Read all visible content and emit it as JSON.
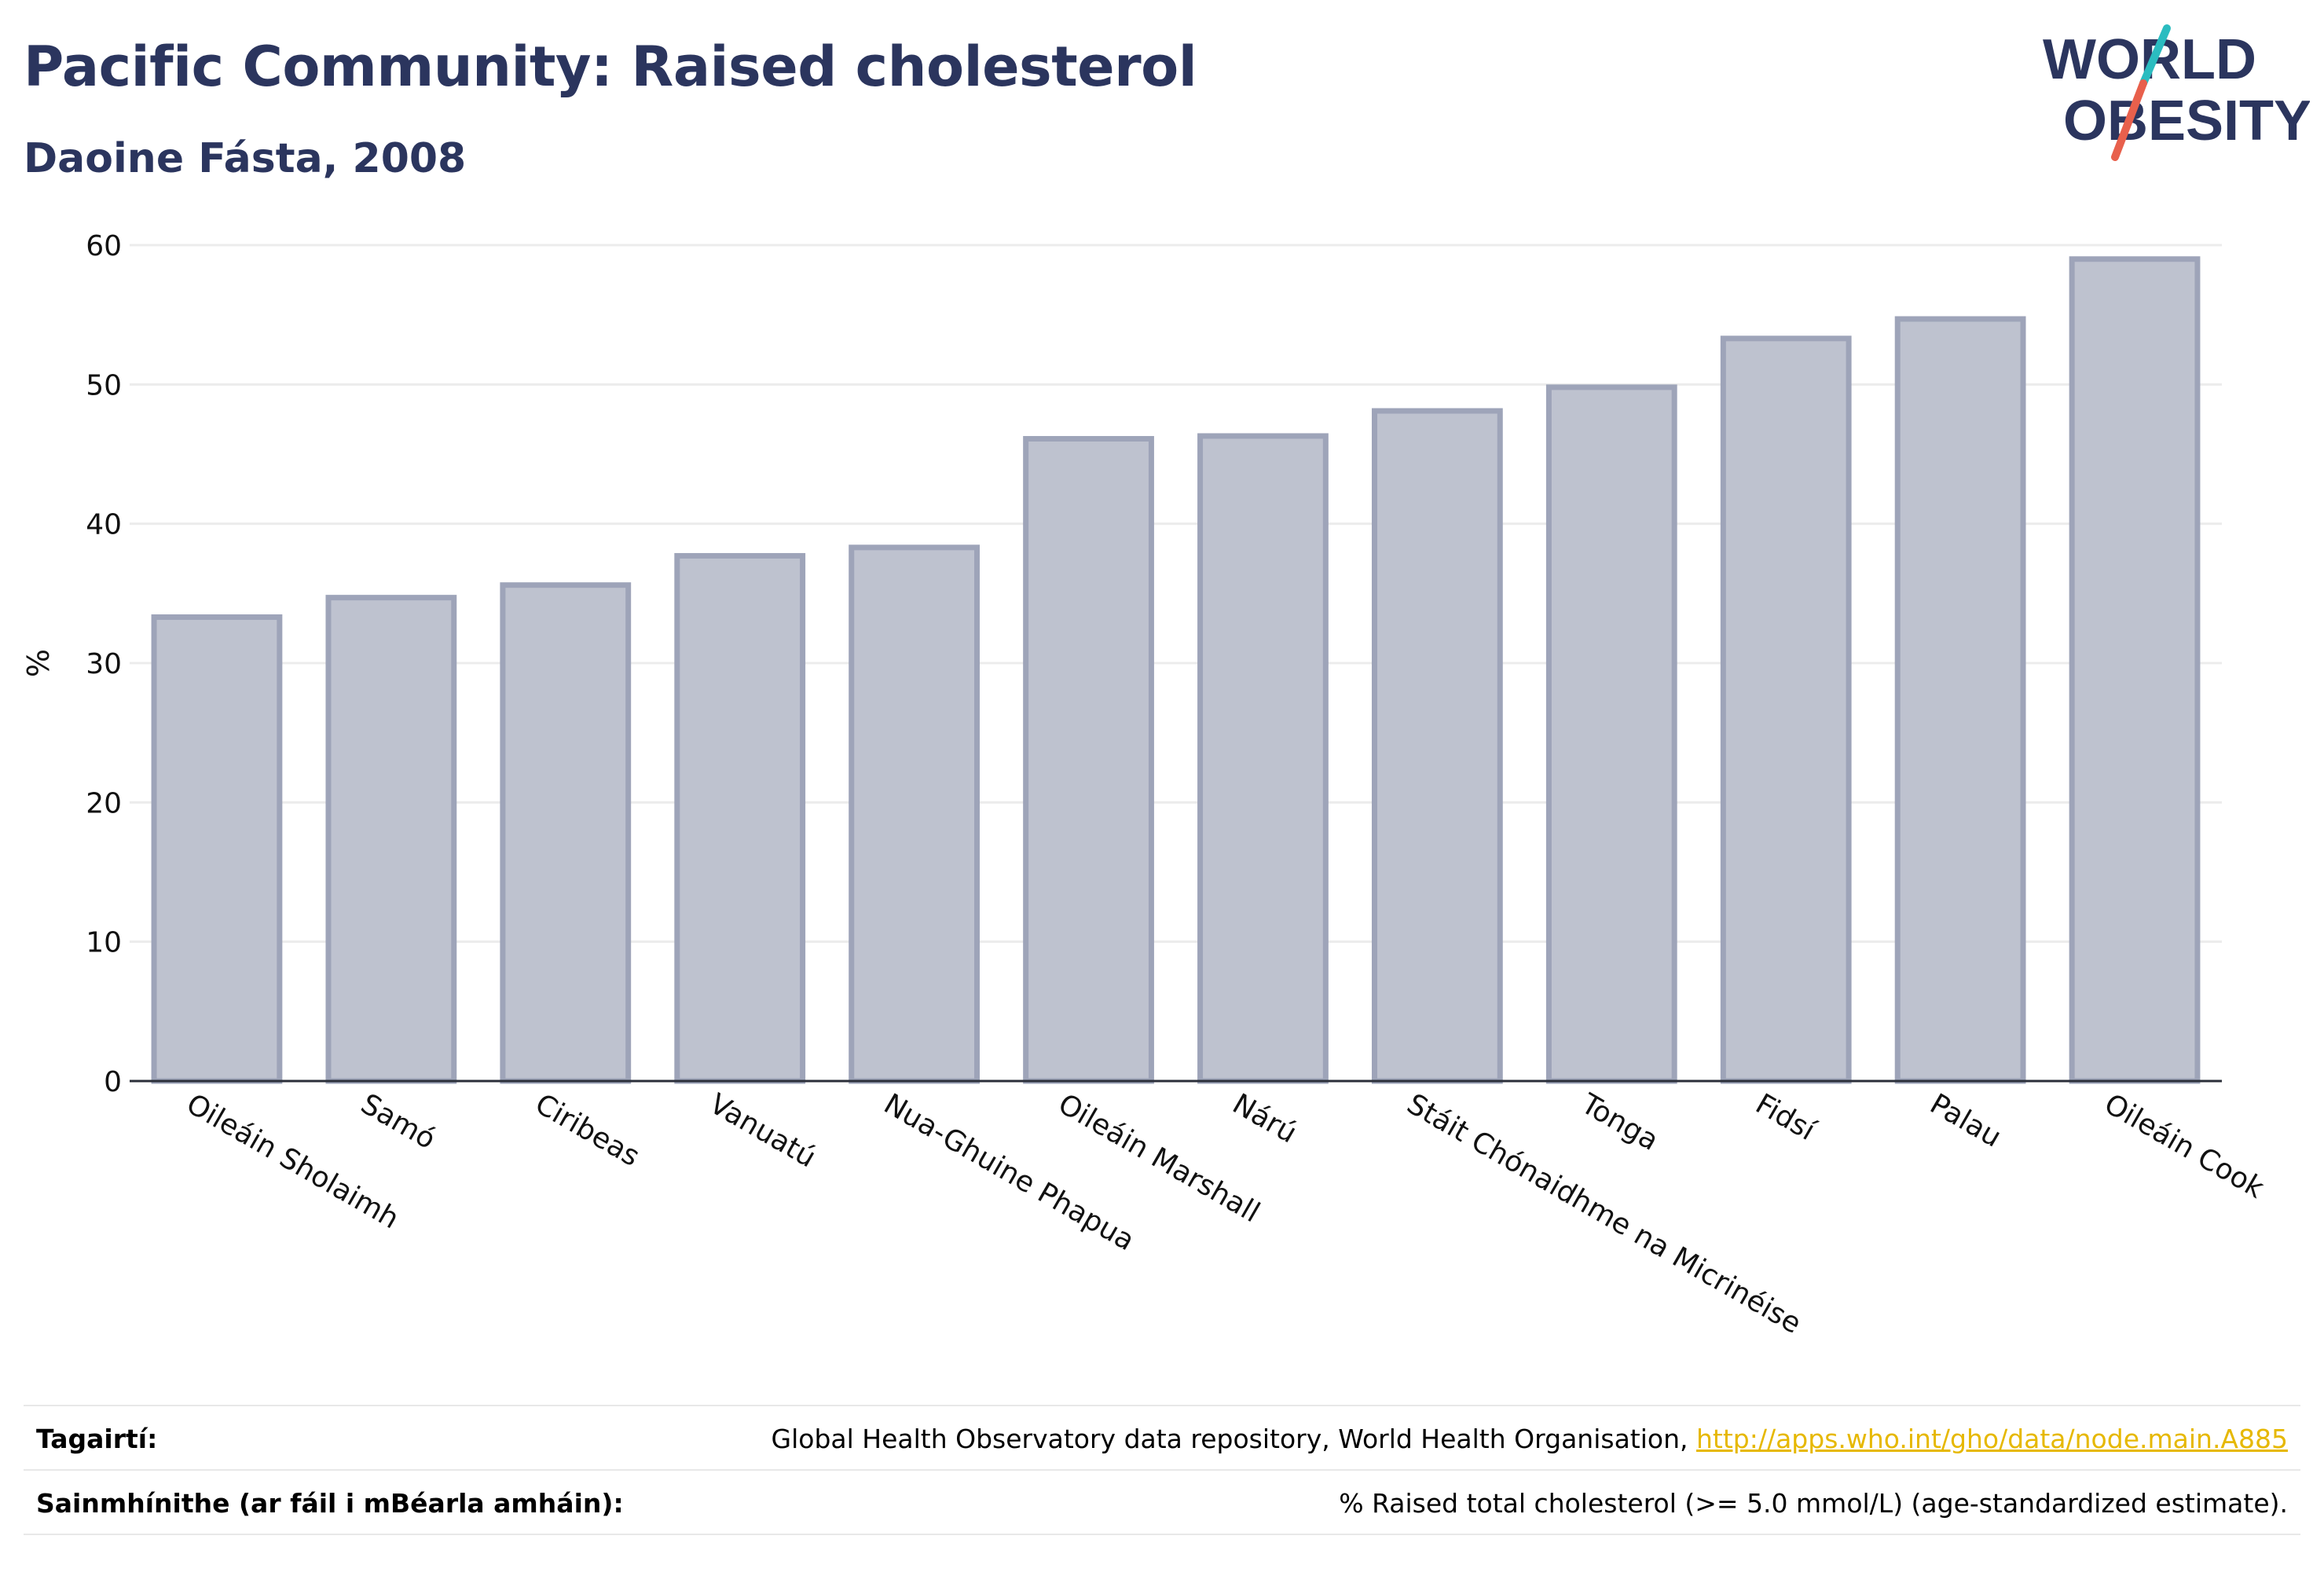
{
  "header": {
    "title": "Pacific Community: Raised cholesterol",
    "subtitle": "Daoine Fásta, 2008"
  },
  "logo": {
    "line1": "WORLD",
    "line2": "OBESITY",
    "text_color": "#2b355e",
    "accent_teal": "#2bbcc0",
    "accent_red": "#e8604c"
  },
  "chart_data": {
    "type": "bar",
    "categories": [
      "Oileáin Sholaimh",
      "Samó",
      "Ciribeas",
      "Vanuatú",
      "Nua-Ghuine Phapua",
      "Oileáin Marshall",
      "Nárú",
      "Stáit Chónaidhme na Micrinéise",
      "Tonga",
      "Fidsí",
      "Palau",
      "Oileáin Cook"
    ],
    "values": [
      33.3,
      34.7,
      35.6,
      37.7,
      38.3,
      46.1,
      46.3,
      48.1,
      49.8,
      53.3,
      54.7,
      59.0
    ],
    "ylabel": "%",
    "xlabel": "",
    "ylim": [
      0,
      60
    ],
    "yticks": [
      "0",
      "10",
      "20",
      "30",
      "40",
      "50",
      "60"
    ],
    "grid": true,
    "bar_fill": "#bec2cf",
    "bar_stroke": "#9ea4b9",
    "axis_color": "#2b2f3a",
    "grid_color": "#ececec"
  },
  "footer": {
    "references_label": "Tagairtí:",
    "references_text": "Global Health Observatory data repository, World Health Organisation, ",
    "references_link": "http://apps.who.int/gho/data/node.main.A885",
    "definitions_label": "Sainmhínithe (ar fáil i mBéarla amháin):",
    "definitions_text": "% Raised total cholesterol (>= 5.0 mmol/L) (age-standardized estimate)."
  }
}
